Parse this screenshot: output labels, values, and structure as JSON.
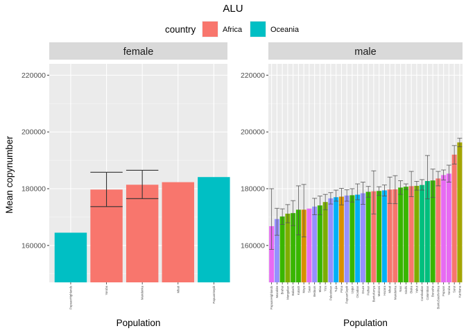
{
  "chart_data": {
    "type": "bar",
    "title": "ALU",
    "ylabel": "Mean copynumber",
    "xlabel": "Population",
    "legend": {
      "title": "country",
      "placement": "top",
      "entries": [
        {
          "name": "Africa",
          "color": "#F8766D"
        },
        {
          "name": "Oceania",
          "color": "#00BFC4"
        }
      ]
    },
    "ylim": [
      147000,
      224000
    ],
    "y_ticks": [
      160000,
      180000,
      200000,
      220000
    ],
    "y_tick_labels": [
      "160000",
      "180000",
      "200000",
      "220000"
    ],
    "grid": true,
    "panels": [
      {
        "name": "female",
        "categories": [
          "PapuanHighlands",
          "Yoruba",
          "Mandenka",
          "Mbuti",
          "PapuanSepik"
        ],
        "values": [
          164500,
          179700,
          181400,
          182300,
          184100
        ],
        "error_low": [
          null,
          173700,
          176500,
          null,
          null
        ],
        "error_high": [
          null,
          185800,
          186500,
          null,
          null
        ],
        "colors": [
          "#00BFC4",
          "#F8766D",
          "#F8766D",
          "#F8766D",
          "#00BFC4"
        ]
      },
      {
        "name": "male",
        "categories": [
          "PapuanHighlands",
          "Mozabite",
          "Brahui",
          "Mongolian",
          "Balochi",
          "Kalash",
          "Maya",
          "Saan",
          "Bedouin",
          "Miao",
          "Yizu",
          "Palestinian",
          "Tujia",
          "Pima",
          "PapuanSepik",
          "Uygur",
          "Orcadian",
          "Druze",
          "Pathan",
          "BantuKenya",
          "Makrani",
          "Hazara",
          "Mbuti",
          "Mandenka",
          "Naxi",
          "Sindhi",
          "Biaka",
          "Yakut",
          "Cambodian",
          "Colombian",
          "Burusho",
          "BantuSouthAfrica",
          "Papuan",
          "Yoruba",
          "Surui",
          "Karitiana"
        ],
        "values": [
          166800,
          169300,
          170200,
          171200,
          171400,
          172600,
          172600,
          173000,
          173700,
          174100,
          175300,
          176600,
          177000,
          177200,
          177600,
          177700,
          177900,
          178400,
          178900,
          179100,
          179200,
          179400,
          179700,
          179800,
          180400,
          180700,
          180900,
          181000,
          181300,
          182700,
          182900,
          183600,
          184800,
          185300,
          192000,
          196300
        ],
        "error_low": [
          158600,
          163600,
          167400,
          168000,
          167000,
          163700,
          163000,
          null,
          170800,
          170800,
          172600,
          174600,
          175600,
          174300,
          175600,
          175300,
          176100,
          174500,
          177000,
          171100,
          177600,
          177400,
          174800,
          174700,
          178000,
          179700,
          177200,
          179500,
          179500,
          176400,
          176900,
          181000,
          183100,
          182300,
          188700,
          194800
        ],
        "error_high": [
          180000,
          173100,
          172900,
          174400,
          175800,
          181000,
          181500,
          null,
          176600,
          177400,
          178000,
          178600,
          179500,
          180100,
          179600,
          180000,
          181700,
          182300,
          180800,
          186300,
          180700,
          181300,
          184100,
          184600,
          182800,
          181700,
          186100,
          182600,
          183200,
          191700,
          186900,
          186100,
          186600,
          188300,
          195200,
          197800
        ],
        "colors": [
          "#E76BF3",
          "#9590FF",
          "#39B600",
          "#7CAE00",
          "#39B600",
          "#39B600",
          "#D89000",
          "#E76BF3",
          "#9590FF",
          "#39B600",
          "#7CAE00",
          "#9590FF",
          "#00B0F6",
          "#D89000",
          "#9590FF",
          "#39B600",
          "#00B0F6",
          "#9590FF",
          "#39B600",
          "#F8766D",
          "#39B600",
          "#00B0F6",
          "#F8766D",
          "#F8766D",
          "#39B600",
          "#39B600",
          "#F8766D",
          "#7CAE00",
          "#00BF7D",
          "#00BF7D",
          "#39B600",
          "#F8766D",
          "#E76BF3",
          "#E76BF3",
          "#F8766D",
          "#A3A500"
        ]
      }
    ]
  }
}
